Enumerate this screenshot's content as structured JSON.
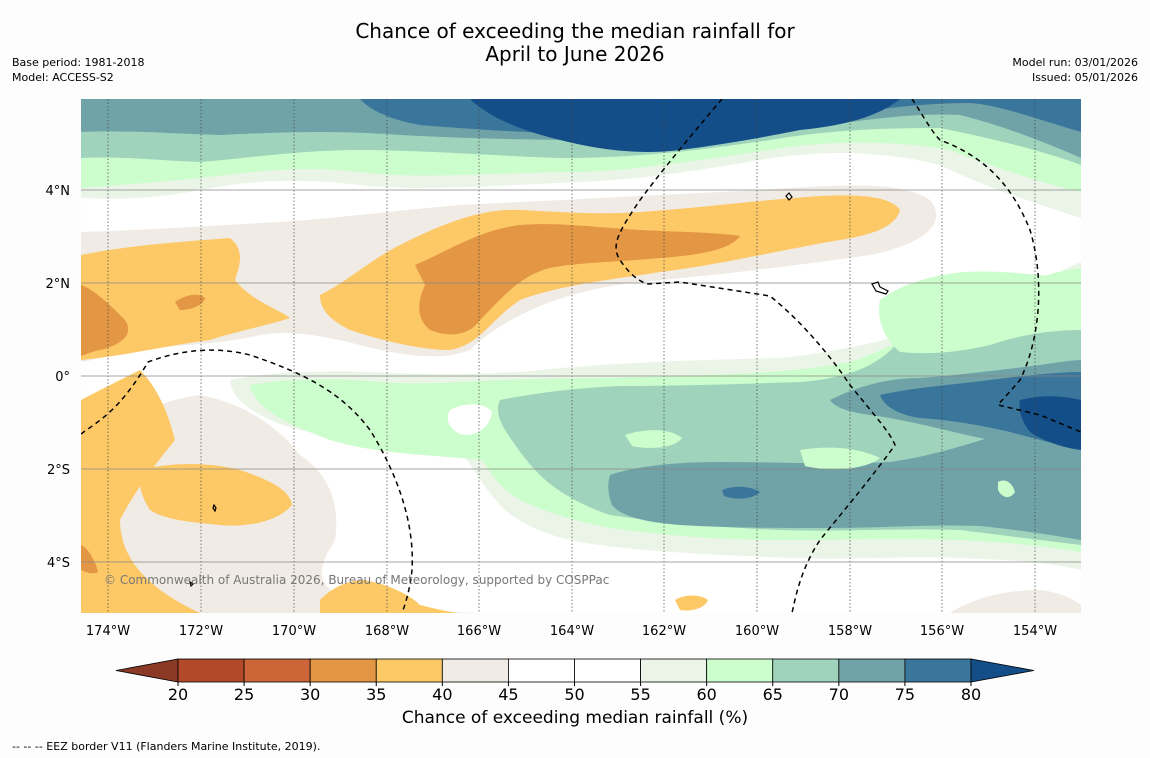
{
  "title": {
    "line1": "Chance of exceeding the median rainfall for",
    "line2": "April to June 2026"
  },
  "meta_left": {
    "base_period": "Base period: 1981-2018",
    "model": "Model: ACCESS-S2"
  },
  "meta_right": {
    "model_run": "Model run: 03/01/2026",
    "issued": "Issued: 05/01/2026"
  },
  "map": {
    "lon_labels": [
      "174°W",
      "172°W",
      "170°W",
      "168°W",
      "166°W",
      "164°W",
      "162°W",
      "160°W",
      "158°W",
      "156°W",
      "154°W"
    ],
    "lat_labels": [
      "4°N",
      "2°N",
      "0°",
      "2°S",
      "4°S"
    ],
    "copyright": "© Commonwealth of Australia 2026, Bureau of Meteorology, supported by COSPPac"
  },
  "colorbar": {
    "ticks": [
      "20",
      "25",
      "30",
      "35",
      "40",
      "45",
      "50",
      "55",
      "60",
      "65",
      "70",
      "75",
      "80"
    ],
    "title": "Chance of exceeding median rainfall (%)",
    "colors": {
      "lt20": "#8b3a25",
      "c20_25": "#b24a2a",
      "c25_30": "#cc6638",
      "c30_35": "#e39643",
      "c35_40": "#fdc866",
      "c40_45": "#f0ebe4",
      "c45_50": "#ffffff",
      "c50_55": "#ffffff",
      "c55_60": "#eaf5e8",
      "c60_65": "#ccfdcc",
      "c65_70": "#9fd3bc",
      "c70_75": "#6fa3a8",
      "c75_80": "#3a769b",
      "gt80": "#144e88"
    }
  },
  "footer": {
    "eez": "-- -- -- EEZ border V11 (Flanders Marine Institute, 2019)."
  }
}
